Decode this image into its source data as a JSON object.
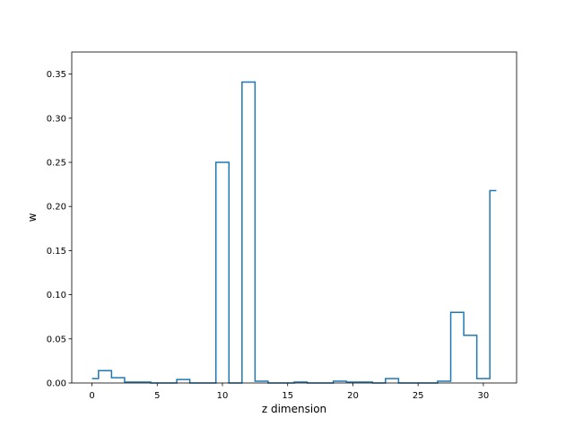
{
  "chart_data": {
    "type": "line",
    "style": "step",
    "xlabel": "z dimension",
    "ylabel": "w",
    "xlim": [
      -1.55,
      32.55
    ],
    "ylim": [
      0,
      0.375
    ],
    "xticks": [
      0,
      5,
      10,
      15,
      20,
      25,
      30
    ],
    "yticks": [
      0.0,
      0.05,
      0.1,
      0.15,
      0.2,
      0.25,
      0.3,
      0.35
    ],
    "grid": false,
    "line_color": "#1f77b4",
    "x": [
      0,
      1,
      2,
      3,
      4,
      5,
      6,
      7,
      8,
      9,
      10,
      11,
      12,
      13,
      14,
      15,
      16,
      17,
      18,
      19,
      20,
      21,
      22,
      23,
      24,
      25,
      26,
      27,
      28,
      29,
      30,
      31
    ],
    "values": [
      0.005,
      0.014,
      0.006,
      0.001,
      0.001,
      0.0,
      0.0,
      0.004,
      0.0,
      0.0,
      0.25,
      0.0,
      0.341,
      0.002,
      0.0,
      0.0,
      0.001,
      0.0,
      0.0,
      0.002,
      0.001,
      0.001,
      0.0,
      0.005,
      0.0,
      0.0,
      0.0,
      0.002,
      0.08,
      0.054,
      0.005,
      0.218
    ]
  }
}
